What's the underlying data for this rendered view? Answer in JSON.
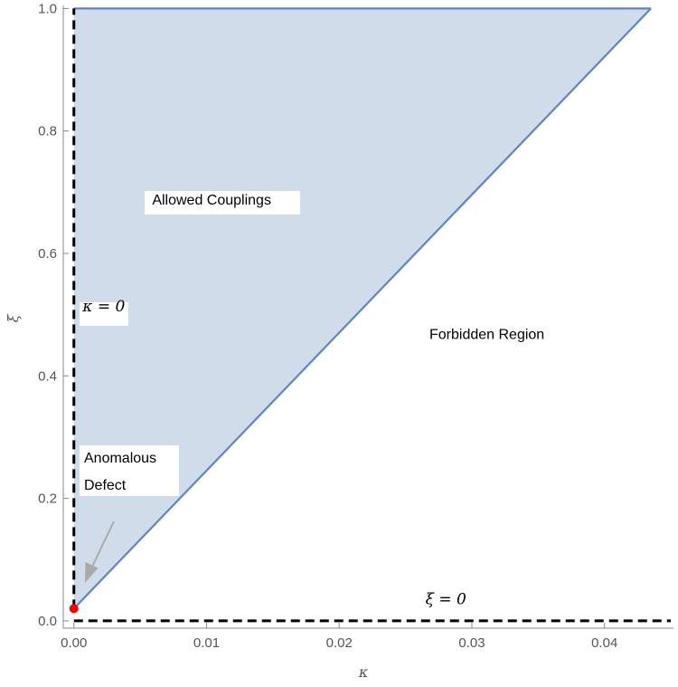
{
  "chart_data": {
    "type": "area",
    "xlabel": "κ",
    "ylabel": "ξ",
    "xlim": [
      -0.0008,
      0.0452
    ],
    "ylim": [
      -0.012,
      1.005
    ],
    "xticks": [
      0.0,
      0.01,
      0.02,
      0.03,
      0.04
    ],
    "xtick_labels": [
      "0.00",
      "0.01",
      "0.02",
      "0.03",
      "0.04"
    ],
    "yticks": [
      0.0,
      0.2,
      0.4,
      0.6,
      0.8,
      1.0
    ],
    "ytick_labels": [
      "0.0",
      "0.2",
      "0.4",
      "0.6",
      "0.8",
      "1.0"
    ],
    "grid": false,
    "series": [
      {
        "style": "filled-region",
        "x": [
          0.0,
          0.0435,
          0.0
        ],
        "y": [
          0.02,
          1.0,
          1.0
        ],
        "color": "#5f85bf",
        "fill": "#d0dcea"
      },
      {
        "style": "dashed",
        "x": [
          0.0,
          0.0
        ],
        "y": [
          0.02,
          1.0
        ],
        "color": "#000000"
      },
      {
        "style": "dashed",
        "x": [
          0.0,
          0.045
        ],
        "y": [
          0.0,
          0.0
        ],
        "color": "#000000"
      },
      {
        "style": "point",
        "x": [
          0.0
        ],
        "y": [
          0.02
        ],
        "color": "#ff0000"
      }
    ],
    "annotations": [
      {
        "id": "allowed",
        "text": "Allowed Couplings",
        "x": 0.0059,
        "y": 0.68
      },
      {
        "id": "forbidden",
        "text": "Forbidden Region",
        "x": 0.0268,
        "y": 0.46
      },
      {
        "id": "kappa0",
        "text": "κ = 0",
        "x": 0.00065,
        "y": 0.505
      },
      {
        "id": "xi0",
        "text": "ξ = 0",
        "x": 0.0265,
        "y": 0.027
      },
      {
        "id": "anomalous",
        "lines": [
          "Anomalous",
          "Defect"
        ]
      }
    ]
  }
}
